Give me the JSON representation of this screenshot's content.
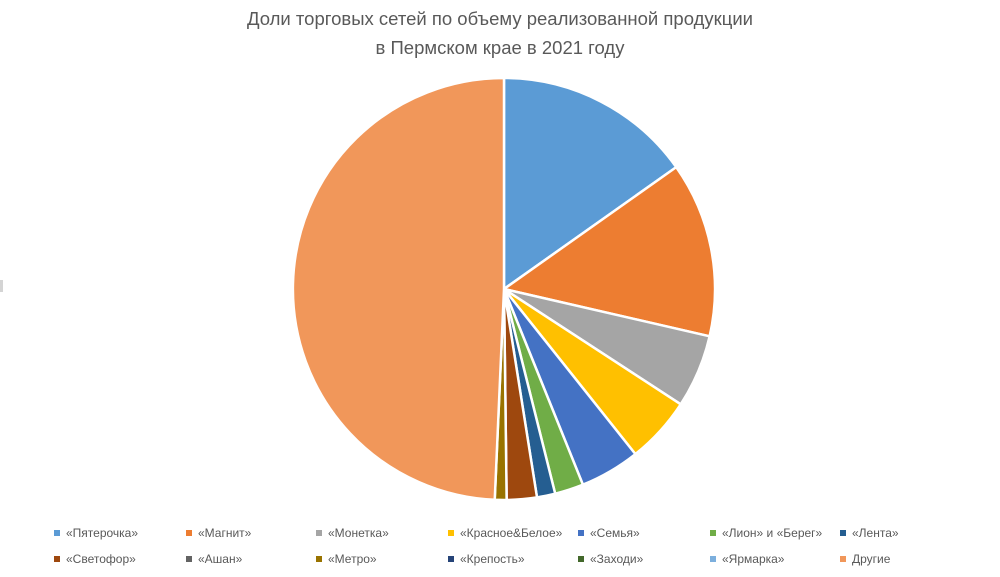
{
  "title": {
    "line1": "Доли торговых сетей по объему реализованной продукции",
    "line2": "в Пермском крае в 2021 году"
  },
  "chart_data": {
    "type": "pie",
    "title": "Доли торговых сетей по объему реализованной продукции в Пермском крае в 2021 году",
    "unit": "% (estimated from slice angles)",
    "start_angle": "12 o'clock, clockwise",
    "legend_position": "bottom",
    "categories": [
      "«Пятерочка»",
      "«Магнит»",
      "«Монетка»",
      "«Красное&Белое»",
      "«Семья»",
      "«Лион» и «Берег»",
      "«Лента»",
      "«Светофор»",
      "«Ашан»",
      "«Метро»",
      "«Крепость»",
      "«Заходи»",
      "«Ярмарка»",
      "Другие"
    ],
    "values": [
      15.2,
      13.4,
      5.6,
      5.1,
      4.6,
      2.2,
      1.4,
      2.3,
      0.0,
      0.9,
      0.0,
      0.0,
      0.0,
      49.3
    ],
    "colors": [
      "#5B9BD5",
      "#ED7D31",
      "#A5A5A5",
      "#FFC000",
      "#4472C4",
      "#70AD47",
      "#255E91",
      "#9E480E",
      "#636363",
      "#997300",
      "#264478",
      "#43682B",
      "#7CAFDD",
      "#F1975A"
    ]
  },
  "legend": {
    "items": [
      {
        "label": "«Пятерочка»",
        "color": "#5B9BD5"
      },
      {
        "label": "«Магнит»",
        "color": "#ED7D31"
      },
      {
        "label": "«Монетка»",
        "color": "#A5A5A5"
      },
      {
        "label": "«Красное&Белое»",
        "color": "#FFC000"
      },
      {
        "label": "«Семья»",
        "color": "#4472C4"
      },
      {
        "label": "«Лион» и «Берег»",
        "color": "#70AD47"
      },
      {
        "label": "«Лента»",
        "color": "#255E91"
      },
      {
        "label": "«Светофор»",
        "color": "#9E480E"
      },
      {
        "label": "«Ашан»",
        "color": "#636363"
      },
      {
        "label": "«Метро»",
        "color": "#997300"
      },
      {
        "label": "«Крепость»",
        "color": "#264478"
      },
      {
        "label": "«Заходи»",
        "color": "#43682B"
      },
      {
        "label": "«Ярмарка»",
        "color": "#7CAFDD"
      },
      {
        "label": "Другие",
        "color": "#F1975A"
      }
    ]
  }
}
